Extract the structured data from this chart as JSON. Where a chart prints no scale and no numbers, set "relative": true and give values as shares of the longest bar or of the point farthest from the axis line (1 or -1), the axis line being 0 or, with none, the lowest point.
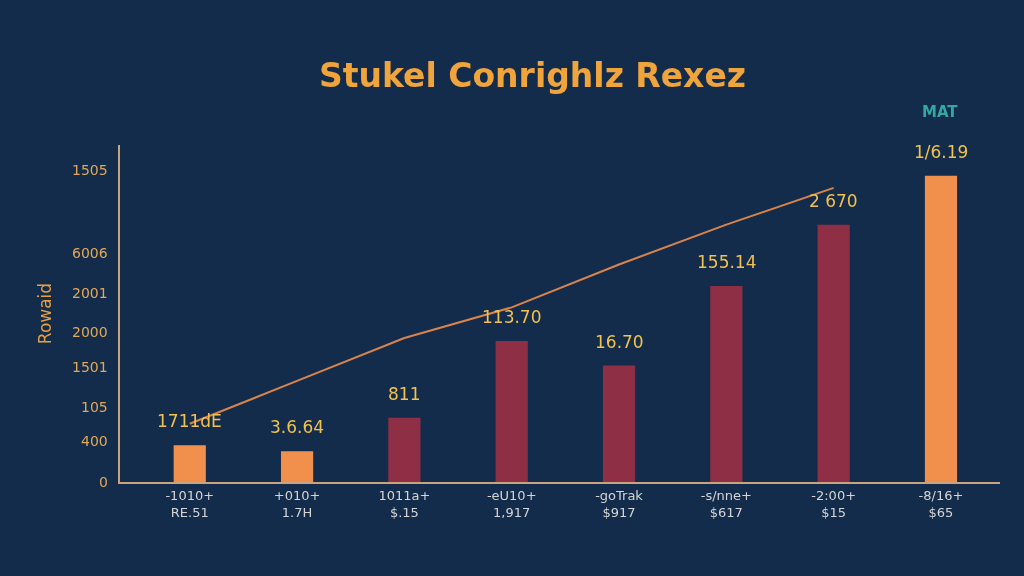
{
  "chart_data": {
    "type": "bar",
    "relative": true,
    "title": "Stukel Conrighlz Rexez",
    "ylabel": "Rowaid",
    "annotations": [
      "MAT",
      "1505",
      "6006",
      "2001",
      "2000",
      "1501",
      "105",
      "400",
      "0",
      {
        "text": "1711dE",
        "x": "-1010+\nRE.51",
        "y": 0.12
      },
      {
        "text": "3.6.64",
        "x": "+010+\n1.7H",
        "y": 0.1
      },
      {
        "text": "811",
        "x": "1011a+\n$.15",
        "y": 0.21
      },
      {
        "text": "113.70",
        "x": "-eU10+\n1,917",
        "y": 0.46
      },
      {
        "text": "16.70",
        "x": "-goTrak\n$917",
        "y": 0.38
      },
      {
        "text": "155.14",
        "x": "-s/nne+\n$617",
        "y": 0.64
      },
      {
        "text": "2 670",
        "x": "-2:00+\n$15",
        "y": 0.84
      },
      {
        "text": "1/6.19",
        "x": "-8/16+\n$65",
        "y": 1
      }
    ],
    "categories": [
      "-1010+\nRE.51",
      "+010+\n1.7H",
      "1011a+\n$.15",
      "-eU10+\n1,917",
      "-goTrak\n$917",
      "-s/nne+\n$617",
      "-2:00+\n$15",
      "-8/16+\n$65"
    ],
    "series": [
      {
        "colors": [
          "#f0904c",
          "#f0904c",
          "#8e2f46",
          "#8e2f46",
          "#8e2f46",
          "#8e2f46",
          "#8e2f46",
          "#f0904c"
        ],
        "values": [
          0.12,
          0.1,
          0.21,
          0.46,
          0.38,
          0.64,
          0.84,
          1
        ]
      },
      {
        "type": "line",
        "color": "#d9844c",
        "values": [
          0.19,
          0.33,
          0.47,
          0.57,
          0.71,
          0.84,
          0.96,
          null
        ]
      }
    ],
    "marker": "none",
    "line_style": "solid"
  }
}
